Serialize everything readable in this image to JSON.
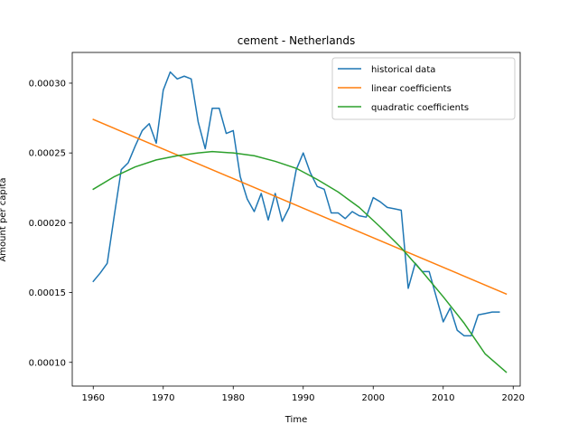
{
  "chart_data": {
    "type": "line",
    "title": "cement - Netherlands",
    "xlabel": "Time",
    "ylabel": "Amount per capita",
    "xlim": [
      1957,
      2021
    ],
    "ylim": [
      8.3e-05,
      0.000322
    ],
    "xticks": [
      1960,
      1970,
      1980,
      1990,
      2000,
      2010,
      2020
    ],
    "xtick_labels": [
      "1960",
      "1970",
      "1980",
      "1990",
      "2000",
      "2010",
      "2020"
    ],
    "yticks": [
      0.0001,
      0.00015,
      0.0002,
      0.00025,
      0.0003
    ],
    "ytick_labels": [
      "0.00010",
      "0.00015",
      "0.00020",
      "0.00025",
      "0.00030"
    ],
    "legend_position": "top-right",
    "grid": false,
    "series": [
      {
        "name": "historical data",
        "color": "#1f77b4",
        "x": [
          1960,
          1961,
          1962,
          1963,
          1964,
          1965,
          1966,
          1967,
          1968,
          1969,
          1970,
          1971,
          1972,
          1973,
          1974,
          1975,
          1976,
          1977,
          1978,
          1979,
          1980,
          1981,
          1982,
          1983,
          1984,
          1985,
          1986,
          1987,
          1988,
          1989,
          1990,
          1991,
          1992,
          1993,
          1994,
          1995,
          1996,
          1997,
          1998,
          1999,
          2000,
          2001,
          2002,
          2003,
          2004,
          2005,
          2006,
          2007,
          2008,
          2009,
          2010,
          2011,
          2012,
          2013,
          2014,
          2015,
          2016,
          2017,
          2018
        ],
        "y": [
          0.000158,
          0.000164,
          0.000171,
          0.000205,
          0.000238,
          0.000243,
          0.000255,
          0.000266,
          0.000271,
          0.000257,
          0.000295,
          0.000308,
          0.000303,
          0.000305,
          0.000303,
          0.000272,
          0.000253,
          0.000282,
          0.000282,
          0.000264,
          0.000266,
          0.000233,
          0.000217,
          0.000208,
          0.000221,
          0.000202,
          0.000221,
          0.000201,
          0.000211,
          0.000238,
          0.00025,
          0.000236,
          0.000226,
          0.000224,
          0.000207,
          0.000207,
          0.000203,
          0.000208,
          0.000205,
          0.000204,
          0.000218,
          0.000215,
          0.000211,
          0.00021,
          0.000209,
          0.000153,
          0.000171,
          0.000165,
          0.000165,
          0.000147,
          0.000129,
          0.000139,
          0.000123,
          0.000119,
          0.000119,
          0.000134,
          0.000135,
          0.000136,
          0.000136
        ]
      },
      {
        "name": "linear coefficients",
        "color": "#ff7f0e",
        "x": [
          1960,
          2019
        ],
        "y": [
          0.000274,
          0.000149
        ]
      },
      {
        "name": "quadratic coefficients",
        "color": "#2ca02c",
        "x": [
          1960,
          1963,
          1966,
          1969,
          1972,
          1975,
          1977,
          1980,
          1983,
          1986,
          1989,
          1992,
          1995,
          1998,
          2001,
          2004,
          2007,
          2010,
          2013,
          2016,
          2019
        ],
        "y": [
          0.000224,
          0.000233,
          0.00024,
          0.000245,
          0.000248,
          0.00025,
          0.000251,
          0.00025,
          0.000248,
          0.000244,
          0.000239,
          0.000231,
          0.000222,
          0.000211,
          0.000197,
          0.000182,
          0.000165,
          0.000147,
          0.000128,
          0.000106,
          9.3e-05
        ]
      }
    ]
  }
}
